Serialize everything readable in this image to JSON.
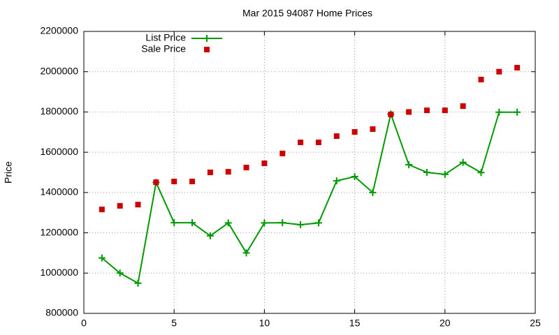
{
  "chart_data": {
    "type": "line",
    "title": "Mar 2015 94087 Home Prices",
    "y_label": "Price",
    "x": [
      1,
      2,
      3,
      4,
      5,
      6,
      7,
      8,
      9,
      10,
      11,
      12,
      13,
      14,
      15,
      16,
      17,
      18,
      19,
      20,
      21,
      22,
      23,
      24
    ],
    "series": [
      {
        "name": "List Price",
        "color": "#009900",
        "line": true,
        "marker": "plus",
        "values": [
          1075000,
          1000000,
          950000,
          1450000,
          1250000,
          1250000,
          1185000,
          1249000,
          1100000,
          1249000,
          1250000,
          1240000,
          1249000,
          1458000,
          1479000,
          1400000,
          1790000,
          1538000,
          1500000,
          1490000,
          1550000,
          1499000,
          1799000,
          1799000
        ]
      },
      {
        "name": "Sale Price",
        "color": "#cc0000",
        "line": false,
        "marker": "square",
        "values": [
          1316000,
          1334000,
          1340000,
          1451000,
          1455000,
          1455000,
          1500000,
          1503000,
          1524000,
          1545000,
          1594000,
          1649000,
          1649000,
          1680000,
          1701000,
          1715000,
          1788000,
          1800000,
          1808000,
          1808000,
          1829000,
          1961000,
          2000000,
          2020000
        ]
      }
    ],
    "xlim": [
      0,
      25
    ],
    "xticks": [
      0,
      5,
      10,
      15,
      20,
      25
    ],
    "ylim": [
      800000,
      2200000
    ],
    "yticks": [
      800000,
      1000000,
      1200000,
      1400000,
      1600000,
      1800000,
      2000000,
      2200000
    ],
    "grid": true,
    "legend": "top-left"
  }
}
